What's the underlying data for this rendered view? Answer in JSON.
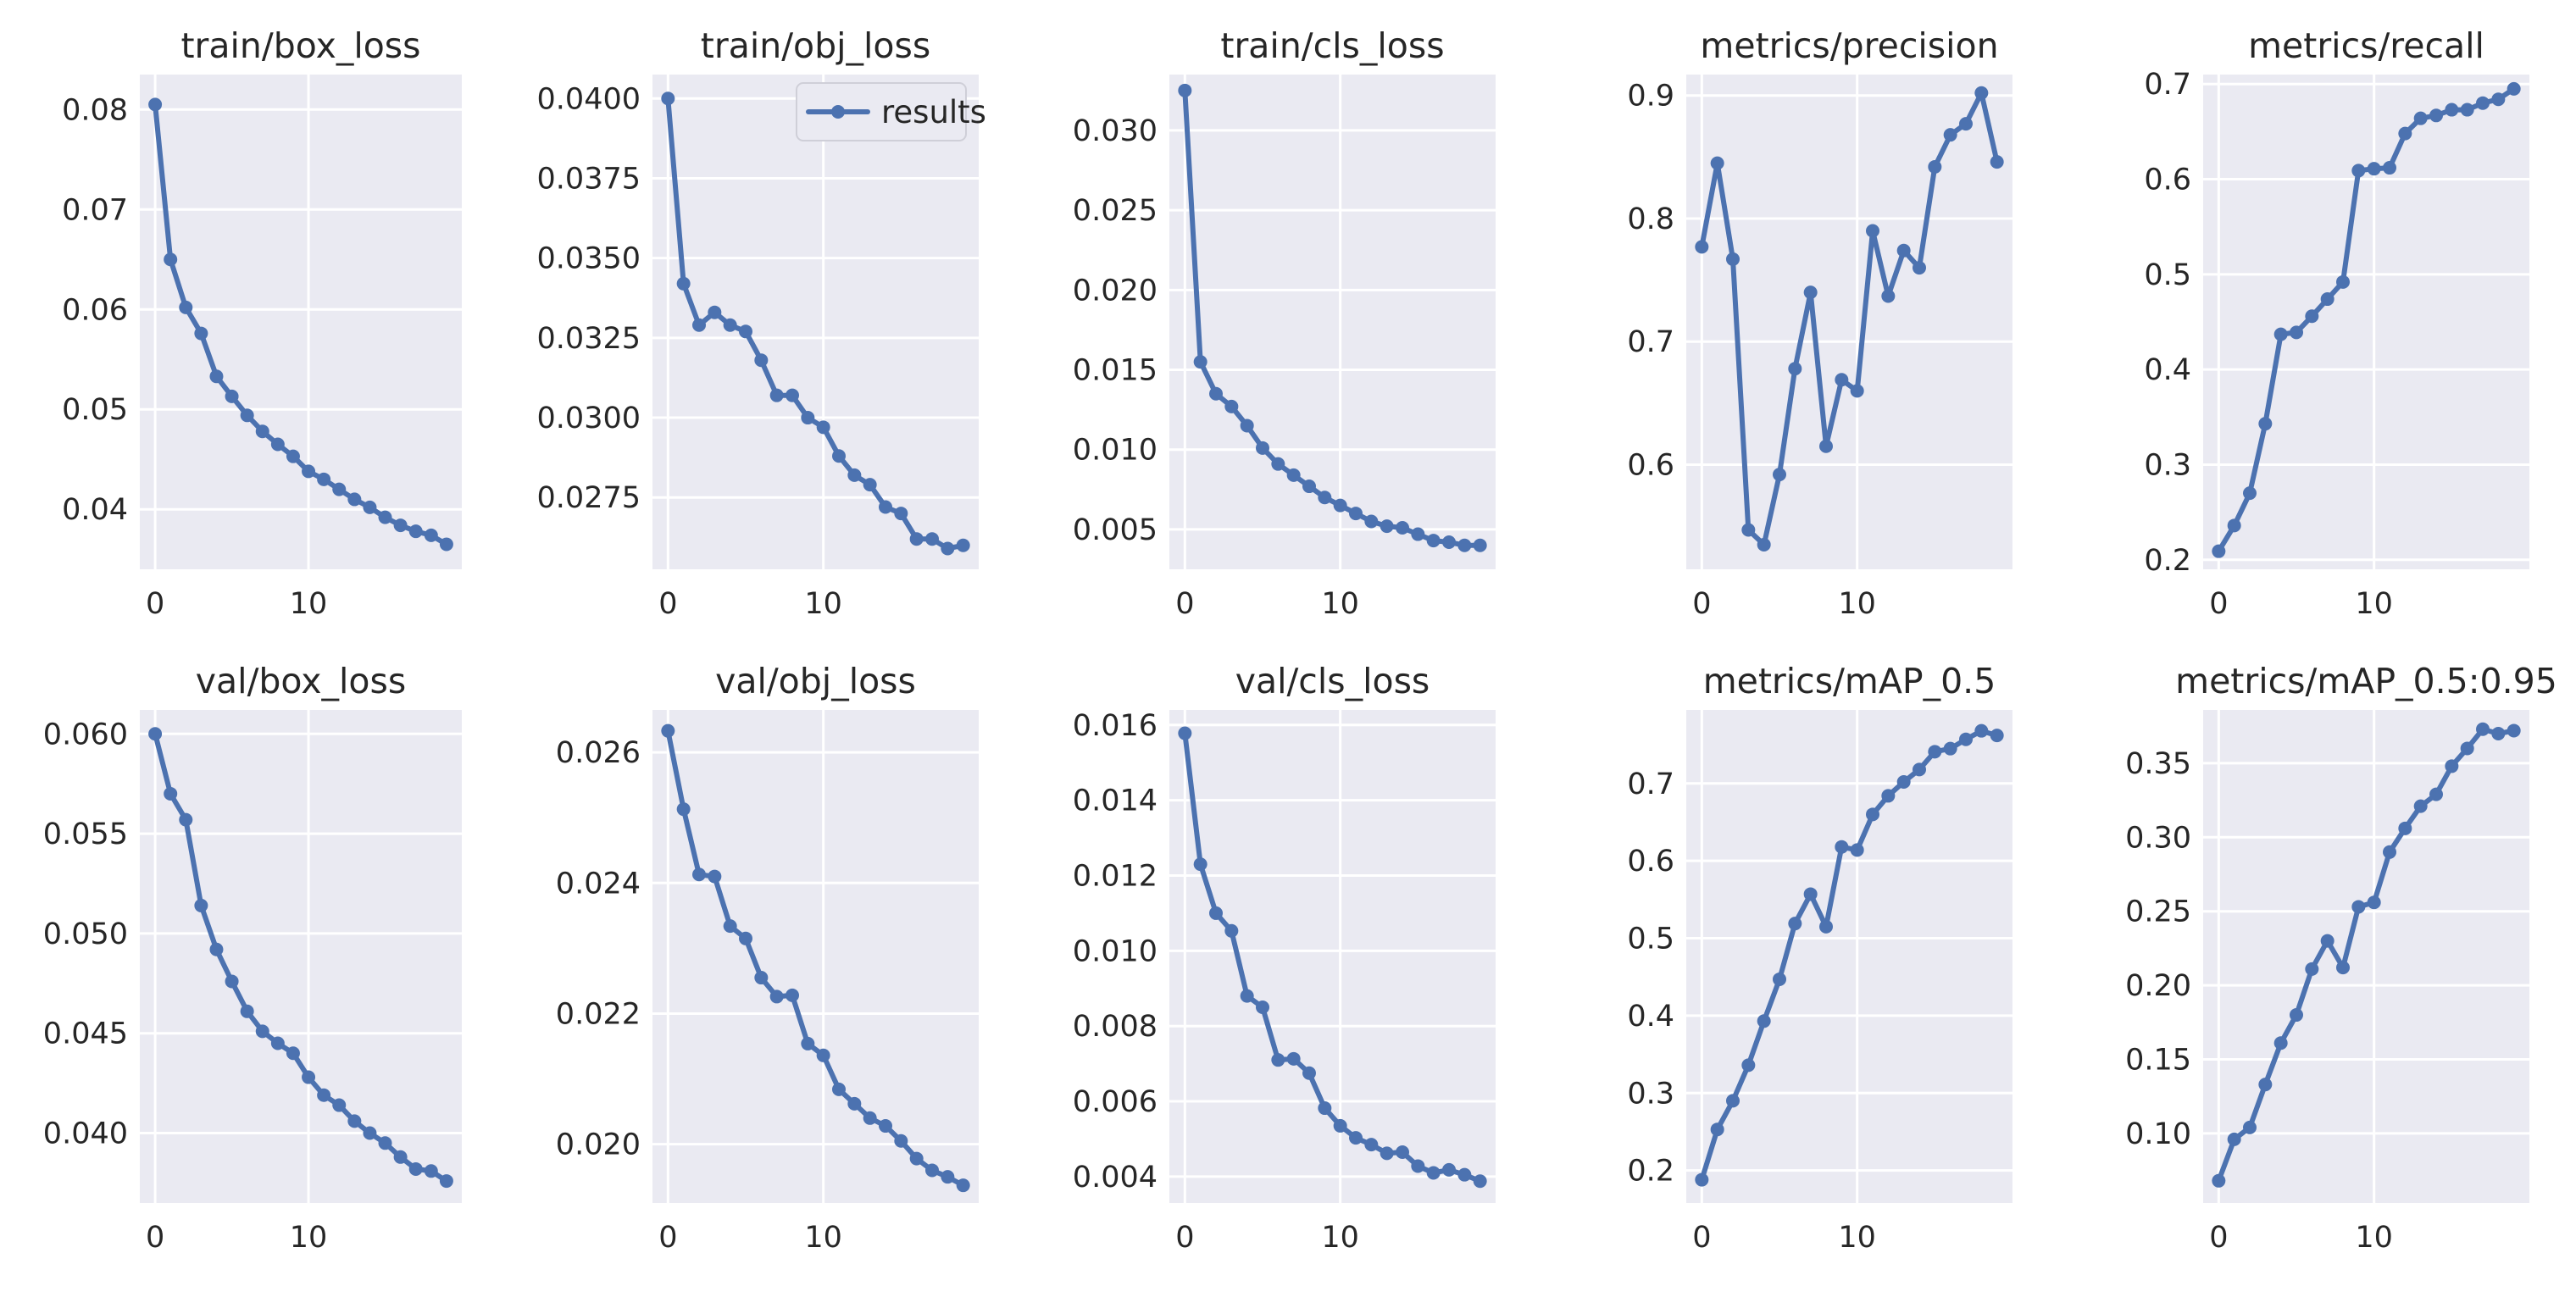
{
  "chart_data": [
    {
      "type": "line",
      "title": "train/box_loss",
      "x": [
        0,
        1,
        2,
        3,
        4,
        5,
        6,
        7,
        8,
        9,
        10,
        11,
        12,
        13,
        14,
        15,
        16,
        17,
        18,
        19
      ],
      "values": [
        0.0805,
        0.065,
        0.0602,
        0.0576,
        0.0533,
        0.0513,
        0.0494,
        0.0478,
        0.0465,
        0.0453,
        0.0438,
        0.043,
        0.042,
        0.041,
        0.0402,
        0.0392,
        0.0384,
        0.0378,
        0.0374,
        0.0365
      ],
      "xlim": [
        -1,
        20
      ],
      "ylim": [
        0.034,
        0.0835
      ],
      "xticks": [
        0,
        10
      ],
      "xtick_labels": [
        "0",
        "10"
      ],
      "yticks": [
        0.04,
        0.05,
        0.06,
        0.07,
        0.08
      ],
      "ytick_labels": [
        "0.04",
        "0.05",
        "0.06",
        "0.07",
        "0.08"
      ]
    },
    {
      "type": "line",
      "title": "train/obj_loss",
      "x": [
        0,
        1,
        2,
        3,
        4,
        5,
        6,
        7,
        8,
        9,
        10,
        11,
        12,
        13,
        14,
        15,
        16,
        17,
        18,
        19
      ],
      "values": [
        0.04,
        0.0342,
        0.0329,
        0.0333,
        0.0329,
        0.0327,
        0.0318,
        0.0307,
        0.0307,
        0.03,
        0.0297,
        0.0288,
        0.0282,
        0.0279,
        0.0272,
        0.027,
        0.0262,
        0.0262,
        0.0259,
        0.026
      ],
      "xlim": [
        -1,
        20
      ],
      "ylim": [
        0.02525,
        0.04075
      ],
      "xticks": [
        0,
        10
      ],
      "xtick_labels": [
        "0",
        "10"
      ],
      "yticks": [
        0.0275,
        0.03,
        0.0325,
        0.035,
        0.0375,
        0.04
      ],
      "ytick_labels": [
        "0.0275",
        "0.0300",
        "0.0325",
        "0.0350",
        "0.0375",
        "0.0400"
      ],
      "legend": {
        "label": "results",
        "position": "top-right"
      }
    },
    {
      "type": "line",
      "title": "train/cls_loss",
      "x": [
        0,
        1,
        2,
        3,
        4,
        5,
        6,
        7,
        8,
        9,
        10,
        11,
        12,
        13,
        14,
        15,
        16,
        17,
        18,
        19
      ],
      "values": [
        0.0325,
        0.0155,
        0.0135,
        0.0127,
        0.0115,
        0.0101,
        0.0091,
        0.0084,
        0.0077,
        0.007,
        0.0065,
        0.006,
        0.0055,
        0.0052,
        0.0051,
        0.0047,
        0.0043,
        0.0042,
        0.004,
        0.004
      ],
      "xlim": [
        -1,
        20
      ],
      "ylim": [
        0.0025,
        0.0335
      ],
      "xticks": [
        0,
        10
      ],
      "xtick_labels": [
        "0",
        "10"
      ],
      "yticks": [
        0.005,
        0.01,
        0.015,
        0.02,
        0.025,
        0.03
      ],
      "ytick_labels": [
        "0.005",
        "0.010",
        "0.015",
        "0.020",
        "0.025",
        "0.030"
      ]
    },
    {
      "type": "line",
      "title": "metrics/precision",
      "x": [
        0,
        1,
        2,
        3,
        4,
        5,
        6,
        7,
        8,
        9,
        10,
        11,
        12,
        13,
        14,
        15,
        16,
        17,
        18,
        19
      ],
      "values": [
        0.777,
        0.845,
        0.767,
        0.547,
        0.535,
        0.592,
        0.678,
        0.74,
        0.615,
        0.669,
        0.66,
        0.79,
        0.737,
        0.774,
        0.76,
        0.842,
        0.868,
        0.877,
        0.902,
        0.846
      ],
      "xlim": [
        -1,
        20
      ],
      "ylim": [
        0.515,
        0.917
      ],
      "xticks": [
        0,
        10
      ],
      "xtick_labels": [
        "0",
        "10"
      ],
      "yticks": [
        0.6,
        0.7,
        0.8,
        0.9
      ],
      "ytick_labels": [
        "0.6",
        "0.7",
        "0.8",
        "0.9"
      ]
    },
    {
      "type": "line",
      "title": "metrics/recall",
      "x": [
        0,
        1,
        2,
        3,
        4,
        5,
        6,
        7,
        8,
        9,
        10,
        11,
        12,
        13,
        14,
        15,
        16,
        17,
        18,
        19
      ],
      "values": [
        0.209,
        0.236,
        0.27,
        0.343,
        0.437,
        0.439,
        0.456,
        0.474,
        0.492,
        0.609,
        0.611,
        0.612,
        0.648,
        0.664,
        0.667,
        0.673,
        0.673,
        0.68,
        0.684,
        0.695
      ],
      "xlim": [
        -1,
        20
      ],
      "ylim": [
        0.19,
        0.71
      ],
      "xticks": [
        0,
        10
      ],
      "xtick_labels": [
        "0",
        "10"
      ],
      "yticks": [
        0.2,
        0.3,
        0.4,
        0.5,
        0.6,
        0.7
      ],
      "ytick_labels": [
        "0.2",
        "0.3",
        "0.4",
        "0.5",
        "0.6",
        "0.7"
      ]
    },
    {
      "type": "line",
      "title": "val/box_loss",
      "x": [
        0,
        1,
        2,
        3,
        4,
        5,
        6,
        7,
        8,
        9,
        10,
        11,
        12,
        13,
        14,
        15,
        16,
        17,
        18,
        19
      ],
      "values": [
        0.06,
        0.057,
        0.0557,
        0.0514,
        0.0492,
        0.0476,
        0.0461,
        0.0451,
        0.0445,
        0.044,
        0.0428,
        0.0419,
        0.0414,
        0.0406,
        0.04,
        0.0395,
        0.0388,
        0.0382,
        0.0381,
        0.0376
      ],
      "xlim": [
        -1,
        20
      ],
      "ylim": [
        0.0365,
        0.0612
      ],
      "xticks": [
        0,
        10
      ],
      "xtick_labels": [
        "0",
        "10"
      ],
      "yticks": [
        0.04,
        0.045,
        0.05,
        0.055,
        0.06
      ],
      "ytick_labels": [
        "0.040",
        "0.045",
        "0.050",
        "0.055",
        "0.060"
      ]
    },
    {
      "type": "line",
      "title": "val/obj_loss",
      "x": [
        0,
        1,
        2,
        3,
        4,
        5,
        6,
        7,
        8,
        9,
        10,
        11,
        12,
        13,
        14,
        15,
        16,
        17,
        18,
        19
      ],
      "values": [
        0.02633,
        0.02513,
        0.02413,
        0.0241,
        0.02334,
        0.02315,
        0.02255,
        0.02226,
        0.02228,
        0.02154,
        0.02136,
        0.02084,
        0.02062,
        0.0204,
        0.02028,
        0.02005,
        0.01978,
        0.0196,
        0.0195,
        0.01937
      ],
      "xlim": [
        -1,
        20
      ],
      "ylim": [
        0.0191,
        0.02665
      ],
      "xticks": [
        0,
        10
      ],
      "xtick_labels": [
        "0",
        "10"
      ],
      "yticks": [
        0.02,
        0.022,
        0.024,
        0.026
      ],
      "ytick_labels": [
        "0.020",
        "0.022",
        "0.024",
        "0.026"
      ]
    },
    {
      "type": "line",
      "title": "val/cls_loss",
      "x": [
        0,
        1,
        2,
        3,
        4,
        5,
        6,
        7,
        8,
        9,
        10,
        11,
        12,
        13,
        14,
        15,
        16,
        17,
        18,
        19
      ],
      "values": [
        0.01578,
        0.0123,
        0.011,
        0.01053,
        0.0088,
        0.0085,
        0.0071,
        0.00713,
        0.00675,
        0.00582,
        0.00535,
        0.00503,
        0.00485,
        0.00462,
        0.00465,
        0.00428,
        0.0041,
        0.00418,
        0.00405,
        0.00388
      ],
      "xlim": [
        -1,
        20
      ],
      "ylim": [
        0.0033,
        0.0164
      ],
      "xticks": [
        0,
        10
      ],
      "xtick_labels": [
        "0",
        "10"
      ],
      "yticks": [
        0.004,
        0.006,
        0.008,
        0.01,
        0.012,
        0.014,
        0.016
      ],
      "ytick_labels": [
        "0.004",
        "0.006",
        "0.008",
        "0.010",
        "0.012",
        "0.014",
        "0.016"
      ]
    },
    {
      "type": "line",
      "title": "metrics/mAP_0.5",
      "x": [
        0,
        1,
        2,
        3,
        4,
        5,
        6,
        7,
        8,
        9,
        10,
        11,
        12,
        13,
        14,
        15,
        16,
        17,
        18,
        19
      ],
      "values": [
        0.188,
        0.253,
        0.29,
        0.336,
        0.393,
        0.447,
        0.519,
        0.557,
        0.515,
        0.618,
        0.614,
        0.66,
        0.684,
        0.702,
        0.718,
        0.741,
        0.745,
        0.757,
        0.768,
        0.762
      ],
      "xlim": [
        -1,
        20
      ],
      "ylim": [
        0.158,
        0.795
      ],
      "xticks": [
        0,
        10
      ],
      "xtick_labels": [
        "0",
        "10"
      ],
      "yticks": [
        0.2,
        0.3,
        0.4,
        0.5,
        0.6,
        0.7
      ],
      "ytick_labels": [
        "0.2",
        "0.3",
        "0.4",
        "0.5",
        "0.6",
        "0.7"
      ]
    },
    {
      "type": "line",
      "title": "metrics/mAP_0.5:0.95",
      "x": [
        0,
        1,
        2,
        3,
        4,
        5,
        6,
        7,
        8,
        9,
        10,
        11,
        12,
        13,
        14,
        15,
        16,
        17,
        18,
        19
      ],
      "values": [
        0.068,
        0.096,
        0.104,
        0.133,
        0.161,
        0.18,
        0.211,
        0.23,
        0.212,
        0.253,
        0.256,
        0.29,
        0.306,
        0.321,
        0.329,
        0.348,
        0.36,
        0.373,
        0.37,
        0.372
      ],
      "xlim": [
        -1,
        20
      ],
      "ylim": [
        0.053,
        0.386
      ],
      "xticks": [
        0,
        10
      ],
      "xtick_labels": [
        "0",
        "10"
      ],
      "yticks": [
        0.1,
        0.15,
        0.2,
        0.25,
        0.3,
        0.35
      ],
      "ytick_labels": [
        "0.10",
        "0.15",
        "0.20",
        "0.25",
        "0.30",
        "0.35"
      ]
    }
  ]
}
